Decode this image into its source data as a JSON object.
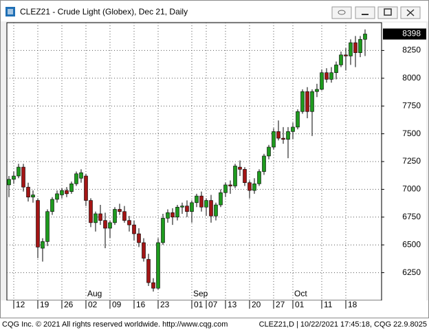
{
  "chart_data": {
    "type": "candlestick",
    "title": "CLEZ21 - Crude Light (Globex), Dec 21, Daily",
    "footer_left": "CQG Inc. © 2021 All rights reserved worldwide. http://www.cqg.com",
    "footer_right": "CLEZ21,D | 10/22/2021 17:45:18, CQG 22.9.8025",
    "categories": [
      null,
      "12",
      null,
      null,
      null,
      null,
      "19",
      null,
      null,
      null,
      null,
      "26",
      null,
      null,
      null,
      null,
      "02",
      null,
      null,
      null,
      null,
      "09",
      null,
      null,
      null,
      null,
      "16",
      null,
      null,
      null,
      null,
      "23",
      null,
      null,
      null,
      null,
      null,
      null,
      "01",
      null,
      null,
      "07",
      null,
      null,
      null,
      "13",
      null,
      null,
      null,
      null,
      "20",
      null,
      null,
      null,
      null,
      "27",
      null,
      null,
      null,
      "01",
      null,
      null,
      null,
      null,
      null,
      "11",
      null,
      null,
      null,
      null,
      "18",
      null,
      null,
      null,
      null
    ],
    "month_labels": [
      null,
      null,
      null,
      null,
      null,
      null,
      null,
      null,
      null,
      null,
      null,
      null,
      null,
      null,
      null,
      null,
      "Aug",
      null,
      null,
      null,
      null,
      null,
      null,
      null,
      null,
      null,
      null,
      null,
      null,
      null,
      null,
      null,
      null,
      null,
      null,
      null,
      null,
      null,
      "Sep",
      null,
      null,
      null,
      null,
      null,
      null,
      null,
      null,
      null,
      null,
      null,
      null,
      null,
      null,
      null,
      null,
      null,
      null,
      null,
      null,
      "Oct",
      null,
      null,
      null,
      null,
      null,
      null,
      null,
      null,
      null,
      null,
      null,
      null,
      null,
      null,
      null
    ],
    "open": [
      7040,
      7090,
      7120,
      7200,
      7020,
      6930,
      6900,
      6470,
      6530,
      6800,
      6910,
      6950,
      6990,
      6980,
      7050,
      7100,
      7120,
      6900,
      6700,
      6780,
      6720,
      6650,
      6700,
      6820,
      6800,
      6720,
      6680,
      6600,
      6520,
      6370,
      6160,
      6110,
      6520,
      6740,
      6790,
      6750,
      6840,
      6850,
      6800,
      6880,
      6940,
      6840,
      6900,
      6760,
      6860,
      6970,
      7040,
      7030,
      7200,
      7180,
      7060,
      6990,
      7050,
      7160,
      7300,
      7380,
      7520,
      7460,
      7450,
      7520,
      7560,
      7700,
      7880,
      7700,
      7880,
      7900,
      8050,
      7990,
      8050,
      8120,
      8210,
      8200,
      8320,
      8230,
      8350
    ],
    "high": [
      7120,
      7160,
      7230,
      7230,
      7060,
      6990,
      6920,
      6560,
      6820,
      6930,
      6990,
      7010,
      7020,
      7070,
      7160,
      7180,
      7140,
      6920,
      6800,
      6860,
      6790,
      6720,
      6840,
      6870,
      6850,
      6760,
      6720,
      6650,
      6560,
      6420,
      6200,
      6560,
      6780,
      6820,
      6830,
      6860,
      6880,
      6900,
      6900,
      6960,
      6980,
      6920,
      6950,
      6880,
      7000,
      7060,
      7080,
      7230,
      7260,
      7200,
      7080,
      7100,
      7180,
      7320,
      7400,
      7550,
      7620,
      7560,
      7560,
      7600,
      7720,
      7900,
      7920,
      7900,
      7950,
      8080,
      8090,
      8100,
      8150,
      8240,
      8270,
      8350,
      8380,
      8380,
      8440
    ],
    "low": [
      6930,
      7050,
      7100,
      6980,
      6890,
      6880,
      6380,
      6350,
      6490,
      6770,
      6880,
      6920,
      6930,
      6960,
      7030,
      7060,
      6850,
      6660,
      6620,
      6680,
      6470,
      6560,
      6680,
      6770,
      6700,
      6620,
      6540,
      6480,
      6350,
      6130,
      6080,
      6100,
      6500,
      6700,
      6680,
      6720,
      6780,
      6750,
      6700,
      6840,
      6800,
      6760,
      6700,
      6720,
      6840,
      6930,
      6960,
      7010,
      7120,
      7030,
      6920,
      6960,
      7030,
      7130,
      7270,
      7360,
      7440,
      7410,
      7280,
      7450,
      7540,
      7680,
      7640,
      7480,
      7830,
      7890,
      7960,
      7960,
      7990,
      8100,
      8070,
      8120,
      8100,
      8190,
      8200
    ],
    "close": [
      7090,
      7120,
      7200,
      7020,
      6930,
      6950,
      6480,
      6530,
      6800,
      6910,
      6960,
      6990,
      6960,
      7050,
      7140,
      7150,
      6900,
      6700,
      6780,
      6720,
      6650,
      6700,
      6820,
      6800,
      6720,
      6680,
      6600,
      6520,
      6380,
      6160,
      6110,
      6520,
      6740,
      6790,
      6750,
      6840,
      6850,
      6800,
      6880,
      6940,
      6840,
      6900,
      6760,
      6860,
      6970,
      7040,
      7030,
      7210,
      7180,
      7060,
      6990,
      7050,
      7160,
      7300,
      7380,
      7520,
      7460,
      7450,
      7520,
      7560,
      7700,
      7880,
      7700,
      7880,
      7900,
      8050,
      7990,
      8050,
      8120,
      8210,
      8200,
      8320,
      8230,
      8350,
      8398
    ],
    "up_color": "#1e9a1e",
    "down_color": "#a31515",
    "ylim": [
      6000,
      8500
    ],
    "yticks": [
      6250,
      6500,
      6750,
      7000,
      7250,
      7500,
      7750,
      8000,
      8250
    ],
    "grid": true
  }
}
